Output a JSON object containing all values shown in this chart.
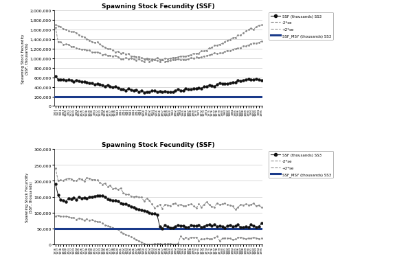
{
  "title": "Spawning Stock Fecundity (SSF)",
  "ylabel": "Spawning Stock Fecundity\n(SSF, thousands)",
  "legend_entries": [
    "SSF (thousands) SS3",
    "-2*se",
    "+2*se",
    "SSF_MSY (thousands) SS3"
  ],
  "panel1": {
    "ylim": [
      0,
      2000000
    ],
    "yticks": [
      0,
      200000,
      400000,
      600000,
      800000,
      1000000,
      1200000,
      1400000,
      1600000,
      1800000,
      2000000
    ],
    "ssf_msy": 200000,
    "ssf_color": "#111111",
    "msy_color": "#1a3a8a",
    "ci_color": "#888888",
    "n_years": 80
  },
  "panel2": {
    "ylim": [
      0,
      300000
    ],
    "yticks": [
      0,
      50000,
      100000,
      150000,
      200000,
      250000,
      300000
    ],
    "ssf_msy": 50000,
    "ssf_color": "#111111",
    "msy_color": "#1a3a8a",
    "ci_color": "#888888",
    "n_years": 80
  }
}
